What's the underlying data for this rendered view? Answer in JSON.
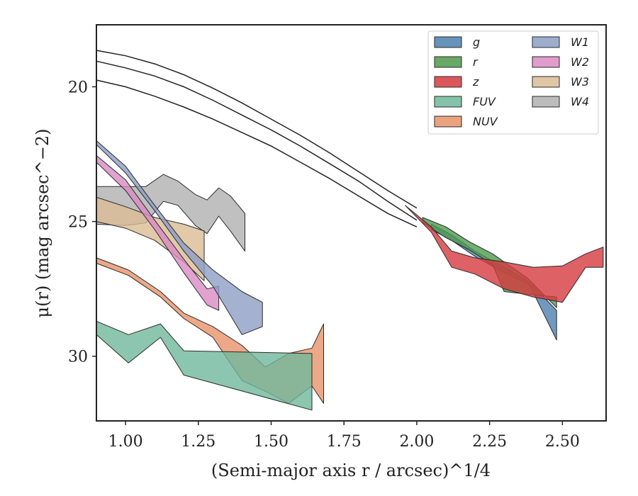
{
  "chart_data": {
    "type": "area",
    "xlabel": "(Semi-major axis r / arcsec)^1/4",
    "ylabel": "μ(r) (mag arcsec^−2)",
    "xlim": [
      0.9,
      2.65
    ],
    "ylim": [
      32.4,
      17.7
    ],
    "y_inverted": true,
    "x_ticks": [
      "1.00",
      "1.25",
      "1.50",
      "1.75",
      "2.00",
      "2.25",
      "2.50"
    ],
    "x_tick_values": [
      1.0,
      1.25,
      1.5,
      1.75,
      2.0,
      2.25,
      2.5
    ],
    "y_ticks": [
      "20",
      "25",
      "30"
    ],
    "y_tick_values": [
      20,
      25,
      30
    ],
    "grid": false,
    "legend_position": "top-right",
    "legend_columns": 2,
    "model_curves": [
      {
        "x": [
          0.9,
          1.0,
          1.1,
          1.2,
          1.3,
          1.4,
          1.5,
          1.6,
          1.7,
          1.8,
          1.9,
          2.0
        ],
        "y": [
          18.65,
          18.85,
          19.15,
          19.55,
          20.05,
          20.6,
          21.2,
          21.8,
          22.45,
          23.15,
          23.85,
          24.5
        ]
      },
      {
        "x": [
          0.9,
          1.0,
          1.1,
          1.2,
          1.3,
          1.4,
          1.5,
          1.6,
          1.7,
          1.8,
          1.9,
          2.0
        ],
        "y": [
          19.05,
          19.3,
          19.6,
          20.0,
          20.5,
          21.05,
          21.6,
          22.2,
          22.85,
          23.5,
          24.25,
          24.95
        ]
      },
      {
        "x": [
          0.9,
          1.0,
          1.1,
          1.2,
          1.3,
          1.4,
          1.5,
          1.6,
          1.7,
          1.8,
          1.9,
          2.0
        ],
        "y": [
          19.75,
          20.0,
          20.35,
          20.75,
          21.2,
          21.7,
          22.2,
          22.8,
          23.4,
          24.05,
          24.7,
          25.2
        ]
      }
    ],
    "series": [
      {
        "name": "g",
        "color": "#4c7fae",
        "upper": [
          [
            2.05,
            25.3
          ],
          [
            2.12,
            25.7
          ],
          [
            2.2,
            26.3
          ],
          [
            2.3,
            26.9
          ],
          [
            2.4,
            27.4
          ],
          [
            2.48,
            28.3
          ]
        ],
        "lower": [
          [
            2.05,
            25.1
          ],
          [
            2.12,
            25.5
          ],
          [
            2.2,
            26.1
          ],
          [
            2.3,
            26.7
          ],
          [
            2.38,
            27.2
          ],
          [
            2.48,
            29.4
          ]
        ]
      },
      {
        "name": "r",
        "color": "#4e9a4e",
        "upper": [
          [
            2.02,
            24.85
          ],
          [
            2.1,
            25.2
          ],
          [
            2.18,
            25.75
          ],
          [
            2.26,
            26.2
          ],
          [
            2.3,
            26.5
          ],
          [
            2.38,
            27.1
          ],
          [
            2.48,
            28.2
          ]
        ],
        "lower": [
          [
            2.02,
            25.05
          ],
          [
            2.1,
            25.6
          ],
          [
            2.18,
            26.05
          ],
          [
            2.26,
            26.6
          ],
          [
            2.3,
            27.6
          ],
          [
            2.38,
            27.7
          ],
          [
            2.48,
            27.8
          ]
        ]
      },
      {
        "name": "z",
        "color": "#d63a3f",
        "upper": [
          [
            1.96,
            24.4
          ],
          [
            2.05,
            25.2
          ],
          [
            2.12,
            26.1
          ],
          [
            2.2,
            26.35
          ],
          [
            2.3,
            26.5
          ],
          [
            2.4,
            26.7
          ],
          [
            2.5,
            26.65
          ],
          [
            2.58,
            26.2
          ],
          [
            2.64,
            25.95
          ]
        ],
        "lower": [
          [
            1.96,
            24.4
          ],
          [
            2.05,
            25.4
          ],
          [
            2.12,
            26.7
          ],
          [
            2.2,
            26.95
          ],
          [
            2.3,
            27.5
          ],
          [
            2.4,
            27.8
          ],
          [
            2.5,
            28.0
          ],
          [
            2.58,
            26.7
          ],
          [
            2.64,
            26.7
          ]
        ]
      },
      {
        "name": "FUV",
        "color": "#6fb89c",
        "upper": [
          [
            0.9,
            28.7
          ],
          [
            1.01,
            29.2
          ],
          [
            1.12,
            28.8
          ],
          [
            1.2,
            29.8
          ],
          [
            1.64,
            29.9
          ]
        ],
        "lower": [
          [
            0.9,
            29.2
          ],
          [
            1.01,
            30.25
          ],
          [
            1.12,
            29.3
          ],
          [
            1.2,
            30.7
          ],
          [
            1.64,
            32.0
          ]
        ]
      },
      {
        "name": "NUV",
        "color": "#e89369",
        "upper": [
          [
            0.9,
            26.35
          ],
          [
            1.01,
            26.8
          ],
          [
            1.12,
            27.6
          ],
          [
            1.2,
            28.4
          ],
          [
            1.3,
            28.9
          ],
          [
            1.4,
            29.6
          ],
          [
            1.48,
            30.4
          ],
          [
            1.56,
            29.9
          ],
          [
            1.64,
            29.7
          ],
          [
            1.68,
            28.8
          ]
        ],
        "lower": [
          [
            0.9,
            26.55
          ],
          [
            1.01,
            27.0
          ],
          [
            1.12,
            27.8
          ],
          [
            1.2,
            28.6
          ],
          [
            1.3,
            29.3
          ],
          [
            1.4,
            30.9
          ],
          [
            1.48,
            31.3
          ],
          [
            1.56,
            31.75
          ],
          [
            1.64,
            31.1
          ],
          [
            1.68,
            31.75
          ]
        ]
      },
      {
        "name": "W1",
        "color": "#8d9ec5",
        "upper": [
          [
            0.9,
            22.0
          ],
          [
            1.0,
            22.95
          ],
          [
            1.1,
            24.4
          ],
          [
            1.2,
            25.8
          ],
          [
            1.3,
            26.8
          ],
          [
            1.4,
            27.6
          ],
          [
            1.47,
            28.0
          ]
        ],
        "lower": [
          [
            0.9,
            22.15
          ],
          [
            1.0,
            23.2
          ],
          [
            1.1,
            24.6
          ],
          [
            1.2,
            26.1
          ],
          [
            1.3,
            27.4
          ],
          [
            1.4,
            29.2
          ],
          [
            1.47,
            28.9
          ]
        ]
      },
      {
        "name": "W2",
        "color": "#d98bc3",
        "upper": [
          [
            0.9,
            22.55
          ],
          [
            1.0,
            23.45
          ],
          [
            1.1,
            24.95
          ],
          [
            1.2,
            26.4
          ],
          [
            1.28,
            27.5
          ],
          [
            1.32,
            27.4
          ]
        ],
        "lower": [
          [
            0.9,
            22.8
          ],
          [
            1.0,
            23.85
          ],
          [
            1.1,
            25.3
          ],
          [
            1.2,
            26.9
          ],
          [
            1.28,
            28.1
          ],
          [
            1.32,
            28.3
          ]
        ]
      },
      {
        "name": "W3",
        "color": "#d9bc95",
        "upper": [
          [
            0.9,
            24.1
          ],
          [
            1.0,
            24.45
          ],
          [
            1.1,
            24.85
          ],
          [
            1.2,
            25.1
          ],
          [
            1.27,
            25.35
          ]
        ],
        "lower": [
          [
            0.9,
            25.0
          ],
          [
            1.0,
            25.25
          ],
          [
            1.1,
            25.7
          ],
          [
            1.2,
            26.5
          ],
          [
            1.27,
            27.2
          ]
        ]
      },
      {
        "name": "W4",
        "color": "#b0b0b0",
        "upper": [
          [
            0.9,
            23.7
          ],
          [
            1.0,
            23.7
          ],
          [
            1.07,
            23.7
          ],
          [
            1.13,
            23.25
          ],
          [
            1.18,
            23.5
          ],
          [
            1.24,
            24.0
          ],
          [
            1.28,
            24.2
          ],
          [
            1.32,
            23.75
          ],
          [
            1.36,
            24.05
          ],
          [
            1.41,
            24.7
          ]
        ],
        "lower": [
          [
            0.9,
            25.1
          ],
          [
            1.0,
            25.15
          ],
          [
            1.07,
            25.05
          ],
          [
            1.13,
            24.25
          ],
          [
            1.18,
            24.4
          ],
          [
            1.24,
            25.15
          ],
          [
            1.28,
            25.45
          ],
          [
            1.32,
            24.8
          ],
          [
            1.36,
            25.35
          ],
          [
            1.41,
            26.1
          ]
        ]
      }
    ]
  }
}
